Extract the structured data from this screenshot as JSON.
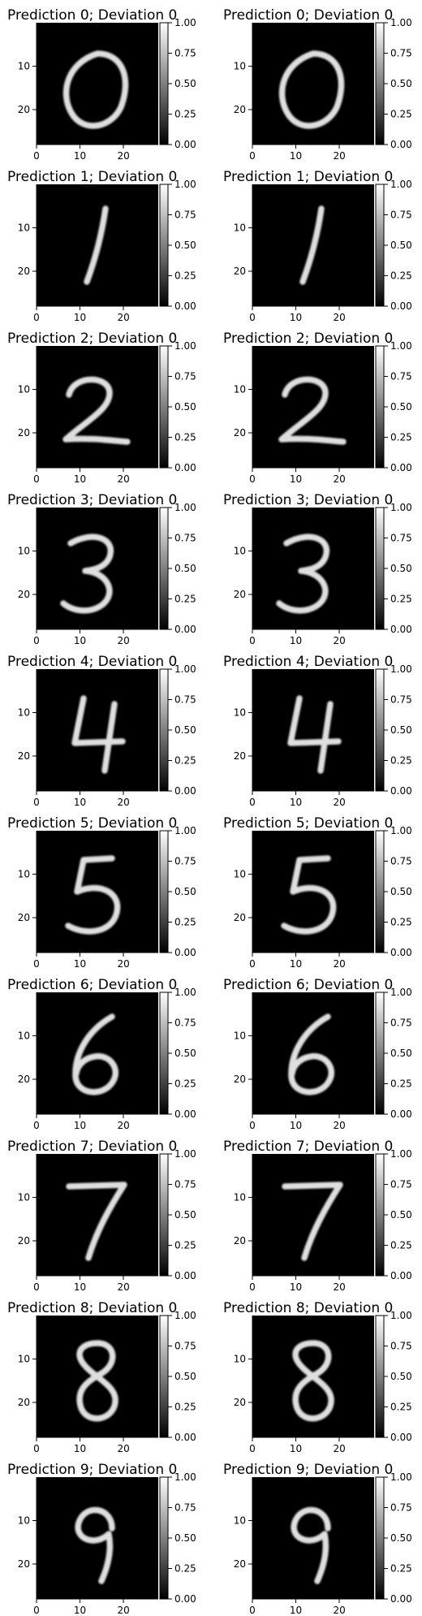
{
  "chart_data": {
    "type": "heatmap",
    "layout": {
      "rows": 10,
      "cols": 2
    },
    "image_shape": [
      28,
      28
    ],
    "colormap": "gray",
    "x_ticks": [
      "0",
      "10",
      "20"
    ],
    "y_ticks": [
      "10",
      "20"
    ],
    "colorbar": {
      "min": 0.0,
      "max": 1.0,
      "ticks": [
        "1.00",
        "0.75",
        "0.50",
        "0.25",
        "0.00"
      ]
    },
    "panels": [
      {
        "title": "Prediction 0; Deviation 0",
        "prediction": 0,
        "deviation": 0
      },
      {
        "title": "Prediction 0; Deviation 0",
        "prediction": 0,
        "deviation": 0
      },
      {
        "title": "Prediction 1; Deviation 0",
        "prediction": 1,
        "deviation": 0
      },
      {
        "title": "Prediction 1; Deviation 0",
        "prediction": 1,
        "deviation": 0
      },
      {
        "title": "Prediction 2; Deviation 0",
        "prediction": 2,
        "deviation": 0
      },
      {
        "title": "Prediction 2; Deviation 0",
        "prediction": 2,
        "deviation": 0
      },
      {
        "title": "Prediction 3; Deviation 0",
        "prediction": 3,
        "deviation": 0
      },
      {
        "title": "Prediction 3; Deviation 0",
        "prediction": 3,
        "deviation": 0
      },
      {
        "title": "Prediction 4; Deviation 0",
        "prediction": 4,
        "deviation": 0
      },
      {
        "title": "Prediction 4; Deviation 0",
        "prediction": 4,
        "deviation": 0
      },
      {
        "title": "Prediction 5; Deviation 0",
        "prediction": 5,
        "deviation": 0
      },
      {
        "title": "Prediction 5; Deviation 0",
        "prediction": 5,
        "deviation": 0
      },
      {
        "title": "Prediction 6; Deviation 0",
        "prediction": 6,
        "deviation": 0
      },
      {
        "title": "Prediction 6; Deviation 0",
        "prediction": 6,
        "deviation": 0
      },
      {
        "title": "Prediction 7; Deviation 0",
        "prediction": 7,
        "deviation": 0
      },
      {
        "title": "Prediction 7; Deviation 0",
        "prediction": 7,
        "deviation": 0
      },
      {
        "title": "Prediction 8; Deviation 0",
        "prediction": 8,
        "deviation": 0
      },
      {
        "title": "Prediction 8; Deviation 0",
        "prediction": 8,
        "deviation": 0
      },
      {
        "title": "Prediction 9; Deviation 0",
        "prediction": 9,
        "deviation": 0
      },
      {
        "title": "Prediction 9; Deviation 0",
        "prediction": 9,
        "deviation": 0
      }
    ]
  }
}
